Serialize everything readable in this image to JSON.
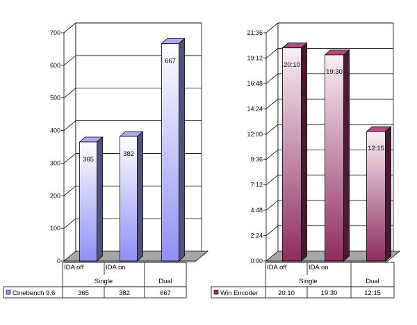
{
  "chart_data": [
    {
      "type": "bar",
      "title": "",
      "xlabel": "",
      "ylabel": "",
      "ylim": [
        0,
        700
      ],
      "yticks": [
        "0",
        "100",
        "200",
        "300",
        "400",
        "500",
        "600",
        "700"
      ],
      "categories": [
        "IDA off",
        "IDA on",
        ""
      ],
      "groups": [
        "Single",
        "Dual"
      ],
      "series": [
        {
          "name": "Cinebench 9.6",
          "values": [
            365,
            382,
            667
          ],
          "labels": [
            "365",
            "382",
            "667"
          ]
        }
      ],
      "table_values": [
        "365",
        "382",
        "667"
      ],
      "colors": {
        "light": "#ffffff",
        "dark": "#8f8ff7",
        "side": "#52527e",
        "top": "#a9a9f2"
      },
      "grid": true,
      "style": "3d"
    },
    {
      "type": "bar",
      "title": "",
      "xlabel": "",
      "ylabel": "",
      "ylim": [
        0,
        1296
      ],
      "value_format": "min:sec",
      "yticks": [
        "0:00",
        "2:24",
        "4:48",
        "7:12",
        "9:36",
        "12:00",
        "14:24",
        "16:48",
        "19:12",
        "21:36"
      ],
      "categories": [
        "IDA off",
        "IDA on",
        ""
      ],
      "groups": [
        "Single",
        "Dual"
      ],
      "series": [
        {
          "name": "Win Encoder",
          "values": [
            1210,
            1170,
            735
          ],
          "labels": [
            "20:10",
            "19:30",
            "12:15"
          ]
        }
      ],
      "table_values": [
        "20:10",
        "19:30",
        "12:15"
      ],
      "colors": {
        "light": "#f9eef4",
        "dark": "#8e2d5e",
        "side": "#4a1a33",
        "top": "#b44a7f"
      },
      "grid": true,
      "style": "3d"
    }
  ]
}
